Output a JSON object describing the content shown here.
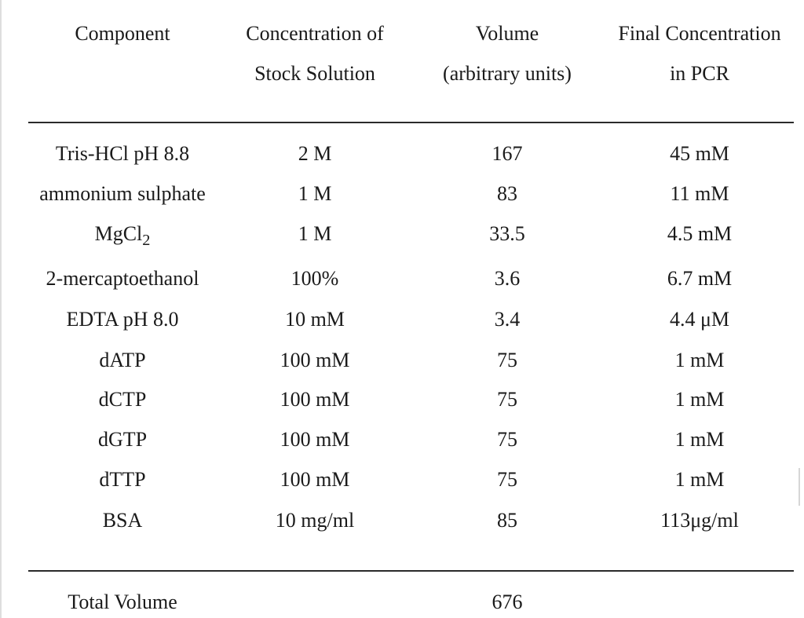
{
  "table": {
    "headers": [
      {
        "line1": "Component",
        "line2": ""
      },
      {
        "line1": "Concentration of",
        "line2": "Stock Solution"
      },
      {
        "line1": "Volume",
        "line2": "(arbitrary units)"
      },
      {
        "line1": "Final Concentration",
        "line2": "in PCR"
      }
    ],
    "rows": [
      {
        "component": "Tris-HCl pH 8.8",
        "stock": "2 M",
        "volume": "167",
        "final": "45 mM"
      },
      {
        "component": "ammonium sulphate",
        "stock": "1 M",
        "volume": "83",
        "final": "11 mM"
      },
      {
        "component": "MgCl",
        "component_sub": "2",
        "stock": "1 M",
        "volume": "33.5",
        "final": "4.5 mM"
      },
      {
        "component": "2-mercaptoethanol",
        "stock": "100%",
        "volume": "3.6",
        "final": "6.7 mM"
      },
      {
        "component": "EDTA pH 8.0",
        "stock": "10 mM",
        "volume": "3.4",
        "final": "4.4 μM"
      },
      {
        "component": "dATP",
        "stock": "100 mM",
        "volume": "75",
        "final": "1 mM"
      },
      {
        "component": "dCTP",
        "stock": "100 mM",
        "volume": "75",
        "final": "1 mM"
      },
      {
        "component": "dGTP",
        "stock": "100 mM",
        "volume": "75",
        "final": "1 mM"
      },
      {
        "component": "dTTP",
        "stock": "100 mM",
        "volume": "75",
        "final": "1 mM"
      },
      {
        "component": "BSA",
        "stock": "10 mg/ml",
        "volume": "85",
        "final": "113μg/ml"
      }
    ],
    "total": {
      "label": "Total Volume",
      "volume": "676"
    }
  }
}
